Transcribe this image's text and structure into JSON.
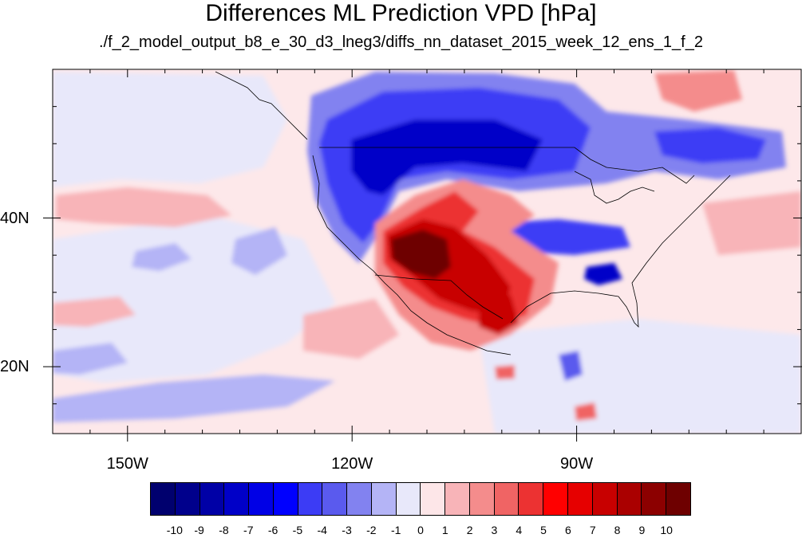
{
  "title": "Differences ML Prediction VPD [hPa]",
  "subtitle": "./f_2_model_output_b8_e_30_d3_lneg3/diffs_nn_dataset_2015_week_12_ens_1_f_2",
  "map": {
    "projection": "cylindrical-equidistant",
    "lon_range": [
      -160,
      -60
    ],
    "lat_range": [
      11,
      60
    ],
    "lon_ticks": [
      {
        "value": -150,
        "label": "150W"
      },
      {
        "value": -120,
        "label": "120W"
      },
      {
        "value": -90,
        "label": "90W"
      }
    ],
    "lat_ticks": [
      {
        "value": 40,
        "label": "40N"
      },
      {
        "value": 20,
        "label": "20N"
      }
    ],
    "background_color": "#fde8ea"
  },
  "colorbar": {
    "levels": [
      "-10",
      "-9",
      "-8",
      "-7",
      "-6",
      "-5",
      "-4",
      "-3",
      "-2",
      "-1",
      "0",
      "1",
      "2",
      "3",
      "4",
      "5",
      "6",
      "7",
      "8",
      "9",
      "10"
    ],
    "colors": [
      "#00006e",
      "#00008c",
      "#0000a6",
      "#0000c8",
      "#0000e6",
      "#0000ff",
      "#3c3cf5",
      "#5a5aee",
      "#8282f0",
      "#b4b4f6",
      "#e8e8fa",
      "#fde6e8",
      "#f8b4b8",
      "#f48c8c",
      "#f06464",
      "#ec3232",
      "#ff0000",
      "#e60000",
      "#c80000",
      "#aa0000",
      "#8c0000",
      "#6e0000"
    ]
  }
}
